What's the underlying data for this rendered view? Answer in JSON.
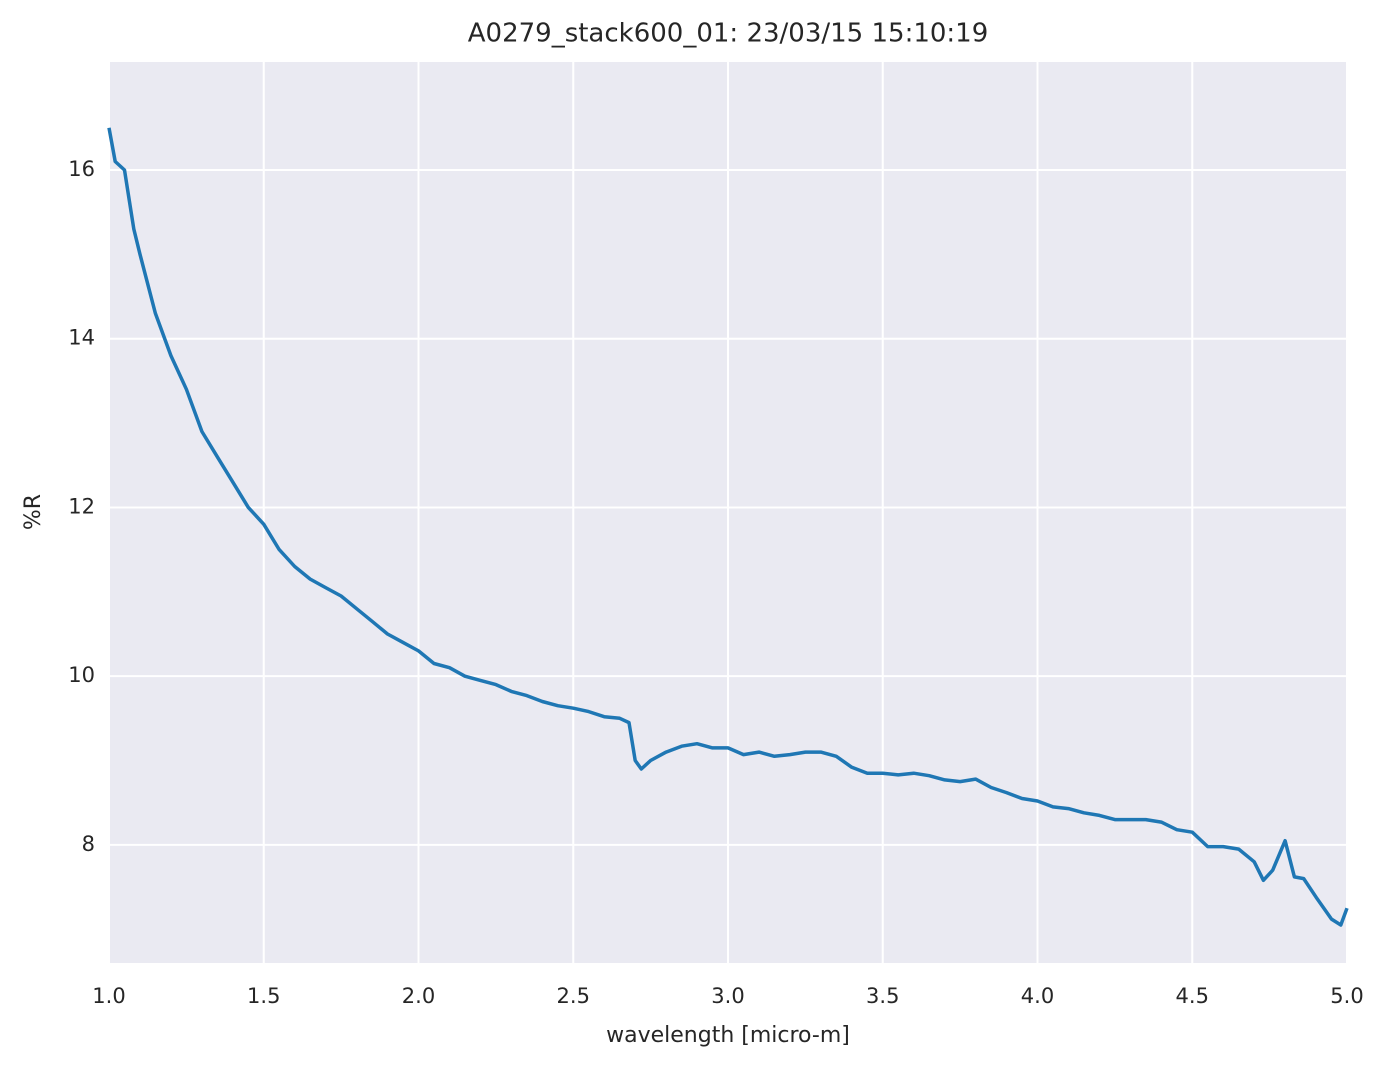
{
  "chart_data": {
    "type": "line",
    "title": "A0279_stack600_01:  23/03/15 15:10:19",
    "x_label": "wavelength [micro-m]",
    "y_label": "%R",
    "color": "#1f77b4",
    "grid": true,
    "x": [
      1.0,
      1.02,
      1.05,
      1.08,
      1.1,
      1.15,
      1.2,
      1.25,
      1.3,
      1.35,
      1.4,
      1.45,
      1.5,
      1.55,
      1.6,
      1.65,
      1.7,
      1.75,
      1.8,
      1.85,
      1.9,
      1.95,
      2.0,
      2.05,
      2.1,
      2.15,
      2.2,
      2.25,
      2.3,
      2.35,
      2.4,
      2.45,
      2.5,
      2.55,
      2.6,
      2.65,
      2.68,
      2.7,
      2.72,
      2.75,
      2.8,
      2.85,
      2.9,
      2.95,
      3.0,
      3.05,
      3.1,
      3.15,
      3.2,
      3.25,
      3.3,
      3.35,
      3.4,
      3.45,
      3.5,
      3.55,
      3.6,
      3.65,
      3.7,
      3.75,
      3.8,
      3.85,
      3.9,
      3.95,
      4.0,
      4.05,
      4.1,
      4.15,
      4.2,
      4.25,
      4.3,
      4.35,
      4.4,
      4.45,
      4.5,
      4.55,
      4.6,
      4.65,
      4.7,
      4.73,
      4.76,
      4.8,
      4.83,
      4.86,
      4.9,
      4.95,
      4.98,
      5.0
    ],
    "values": [
      16.5,
      16.1,
      16.0,
      15.3,
      15.0,
      14.3,
      13.8,
      13.4,
      12.9,
      12.6,
      12.3,
      12.0,
      11.8,
      11.5,
      11.3,
      11.15,
      11.05,
      10.95,
      10.8,
      10.65,
      10.5,
      10.4,
      10.3,
      10.15,
      10.1,
      10.0,
      9.95,
      9.9,
      9.82,
      9.77,
      9.7,
      9.65,
      9.62,
      9.58,
      9.52,
      9.5,
      9.45,
      9.0,
      8.9,
      9.0,
      9.1,
      9.17,
      9.2,
      9.15,
      9.15,
      9.07,
      9.1,
      9.05,
      9.07,
      9.1,
      9.1,
      9.05,
      8.92,
      8.85,
      8.85,
      8.83,
      8.85,
      8.82,
      8.77,
      8.75,
      8.78,
      8.68,
      8.62,
      8.55,
      8.52,
      8.45,
      8.43,
      8.38,
      8.35,
      8.3,
      8.3,
      8.3,
      8.27,
      8.18,
      8.15,
      7.98,
      7.98,
      7.95,
      7.8,
      7.58,
      7.7,
      8.05,
      7.62,
      7.6,
      7.38,
      7.12,
      7.05,
      7.25
    ],
    "xlim": [
      1.0,
      5.0
    ],
    "xticks": [
      {
        "value": 1.0,
        "label": "1.0"
      },
      1.5,
      {
        "value": 2.0,
        "label": "2.0"
      },
      2.5,
      {
        "value": 3.0,
        "label": "3.0"
      },
      3.5,
      {
        "value": 4.0,
        "label": "4.0"
      },
      4.5,
      {
        "value": 5.0,
        "label": "5.0"
      }
    ],
    "ylim": [
      6.6,
      17.28
    ],
    "yticks": [
      8,
      10,
      12,
      14,
      16
    ]
  }
}
